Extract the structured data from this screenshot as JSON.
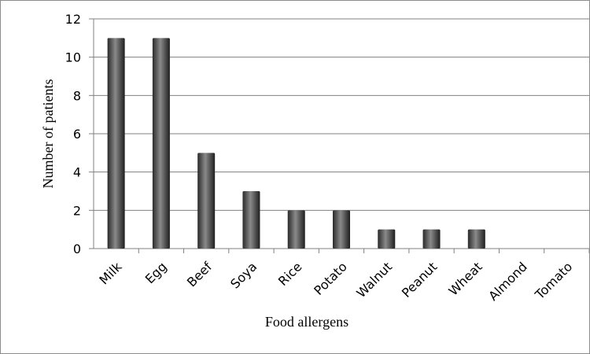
{
  "chart_data": {
    "type": "bar",
    "categories": [
      "Milk",
      "Egg",
      "Beef",
      "Soya",
      "Rice",
      "Potato",
      "Walnut",
      "Peanut",
      "Wheat",
      "Almond",
      "Tomato"
    ],
    "values": [
      11,
      11,
      5,
      3,
      2,
      2,
      1,
      1,
      1,
      0,
      0
    ],
    "xlabel": "Food allergens",
    "ylabel": "Number of patients",
    "ylim": [
      0,
      12
    ],
    "yticks": [
      0,
      2,
      4,
      6,
      8,
      10,
      12
    ],
    "grid": true,
    "legend": "none",
    "colors": {
      "bar": "#3c3c3c",
      "bar_highlight": "#8a8a8a",
      "grid": "#808080"
    }
  }
}
